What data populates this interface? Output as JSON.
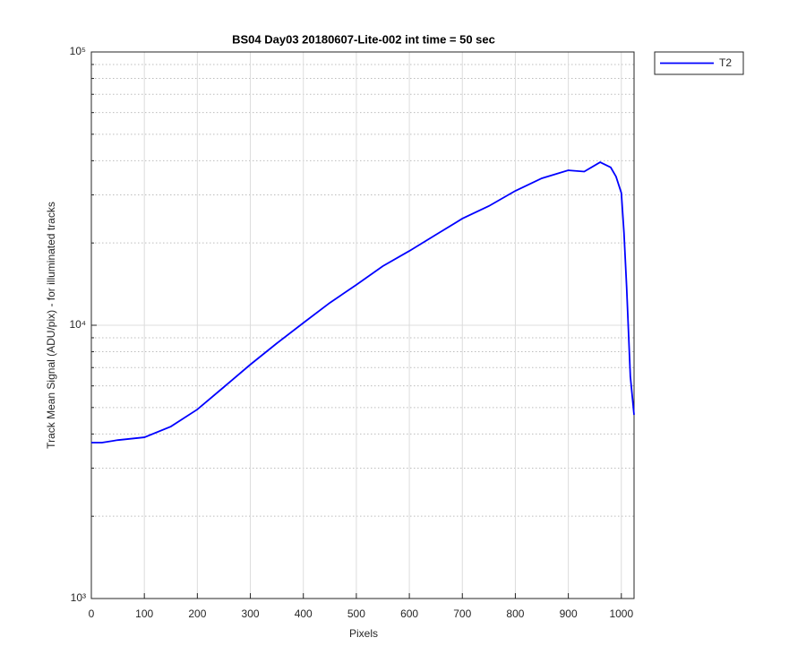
{
  "chart_data": {
    "type": "line",
    "title": "BS04 Day03 20180607-Lite-002 int time = 50 sec",
    "x_label": "Pixels",
    "y_label": "Track Mean Signal (ADU/pix) - for illuminated tracks",
    "x": [
      0,
      20,
      50,
      100,
      150,
      200,
      250,
      300,
      350,
      400,
      450,
      500,
      550,
      600,
      650,
      700,
      750,
      800,
      850,
      900,
      930,
      960,
      980,
      990,
      1000,
      1005,
      1010,
      1017,
      1024
    ],
    "series": [
      {
        "name": "T2",
        "color": "#0000ff",
        "values": [
          3720,
          3720,
          3800,
          3890,
          4260,
          4920,
          5940,
          7180,
          8590,
          10200,
          12080,
          14060,
          16460,
          18700,
          21430,
          24560,
          27300,
          31030,
          34500,
          36900,
          36500,
          39500,
          37800,
          35000,
          30500,
          21800,
          13800,
          6500,
          4700
        ]
      }
    ],
    "xlim": [
      0,
      1024
    ],
    "xticks": [
      0,
      100,
      200,
      300,
      400,
      500,
      600,
      700,
      800,
      900,
      1000
    ],
    "ylim": [
      1000,
      100000
    ],
    "yticks": [
      {
        "value": 1000,
        "label": "10³"
      },
      {
        "value": 10000,
        "label": "10⁴"
      },
      {
        "value": 100000,
        "label": "10⁵"
      }
    ],
    "y_minor_ticks": [
      2000,
      3000,
      4000,
      5000,
      6000,
      7000,
      8000,
      9000,
      20000,
      30000,
      40000,
      50000,
      60000,
      70000,
      80000,
      90000
    ],
    "log_y": true,
    "grid": true,
    "legend": "outside-top-right"
  }
}
